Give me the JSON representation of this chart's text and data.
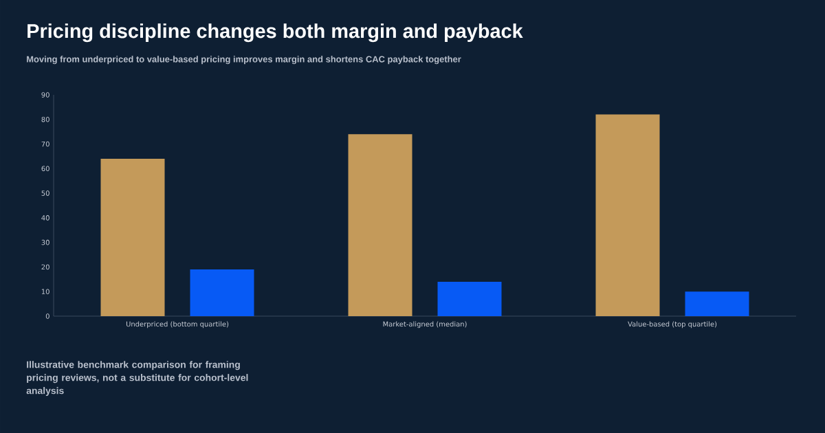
{
  "chart_data": {
    "type": "bar",
    "title": "Pricing discipline changes both margin and payback",
    "subtitle": "Moving from underpriced to value-based pricing improves margin and shortens CAC payback together",
    "categories": [
      "Underpriced (bottom quartile)",
      "Market-aligned (median)",
      "Value-based (top quartile)"
    ],
    "series": [
      {
        "color": "#c49a5a",
        "values": [
          64,
          74,
          82
        ]
      },
      {
        "color": "#075af5",
        "values": [
          19,
          14,
          10
        ]
      }
    ],
    "ylim": [
      0,
      90
    ],
    "yticks": [
      0,
      10,
      20,
      30,
      40,
      50,
      60,
      70,
      80,
      90
    ],
    "annotations": [
      "Illustrative benchmark comparison for framing pricing reviews, not a substitute for cohort-level analysis"
    ]
  }
}
